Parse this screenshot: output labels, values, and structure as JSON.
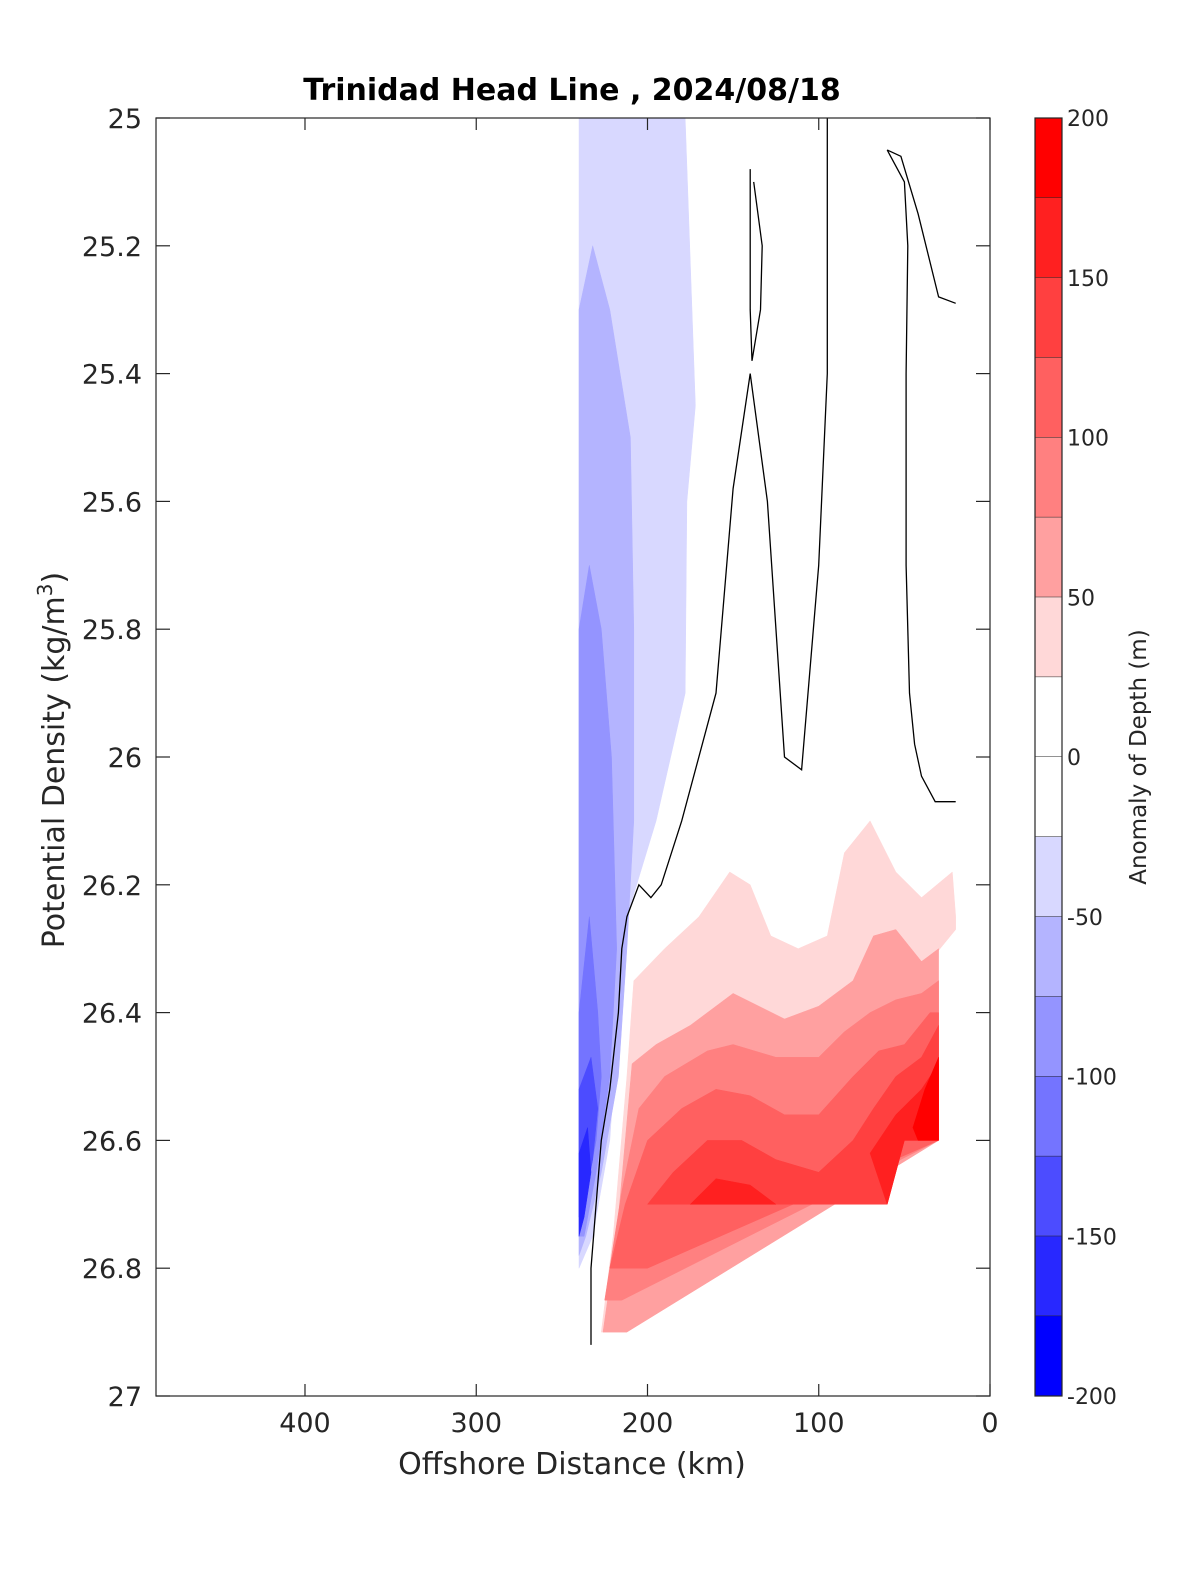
{
  "chart_data": {
    "type": "heatmap",
    "title": "Trinidad Head Line , 2024/08/18",
    "xlabel": "Offshore Distance (km)",
    "ylabel_main": "Potential Density (kg/m",
    "ylabel_sup": "3",
    "ylabel_close": ")",
    "colorbar_label": "Anomaly of Depth (m)",
    "xlim": [
      487,
      0
    ],
    "x_reversed": true,
    "ylim": [
      25,
      27
    ],
    "y_reversed": true,
    "x_ticks": [
      400,
      300,
      200,
      100,
      0
    ],
    "x_tick_labels": [
      "400",
      "300",
      "200",
      "100",
      "0"
    ],
    "y_ticks": [
      25,
      25.2,
      25.4,
      25.6,
      25.8,
      26,
      26.2,
      26.4,
      26.6,
      26.8,
      27
    ],
    "y_tick_labels": [
      "25",
      "25.2",
      "25.4",
      "25.6",
      "25.8",
      "26",
      "26.2",
      "26.4",
      "26.6",
      "26.8",
      "27"
    ],
    "colorbar": {
      "range": [
        -200,
        200
      ],
      "ticks": [
        200,
        150,
        100,
        50,
        0,
        -50,
        -100,
        -150,
        -200
      ],
      "tick_labels": [
        "200",
        "150",
        "100",
        "50",
        "0",
        "-50",
        "-100",
        "-150",
        "-200"
      ],
      "levels": [
        {
          "from": 175,
          "to": 200,
          "color": "#ff0000"
        },
        {
          "from": 150,
          "to": 175,
          "color": "#ff2020"
        },
        {
          "from": 125,
          "to": 150,
          "color": "#ff4040"
        },
        {
          "from": 100,
          "to": 125,
          "color": "#ff6060"
        },
        {
          "from": 75,
          "to": 100,
          "color": "#ff8080"
        },
        {
          "from": 50,
          "to": 75,
          "color": "#ffa0a0"
        },
        {
          "from": 25,
          "to": 50,
          "color": "#ffd8d8"
        },
        {
          "from": 0,
          "to": 25,
          "color": "#ffffff"
        },
        {
          "from": -25,
          "to": 0,
          "color": "#ffffff"
        },
        {
          "from": -50,
          "to": -25,
          "color": "#d8d8ff"
        },
        {
          "from": -75,
          "to": -50,
          "color": "#b4b4ff"
        },
        {
          "from": -100,
          "to": -75,
          "color": "#9494ff"
        },
        {
          "from": -125,
          "to": -100,
          "color": "#7474ff"
        },
        {
          "from": -150,
          "to": -125,
          "color": "#4c4cff"
        },
        {
          "from": -175,
          "to": -150,
          "color": "#2828ff"
        },
        {
          "from": -200,
          "to": -175,
          "color": "#0000ff"
        }
      ]
    },
    "filled_regions": [
      {
        "level": -37,
        "color": "#d8d8ff",
        "points": [
          [
            240,
            25
          ],
          [
            178,
            25
          ],
          [
            172,
            25.45
          ],
          [
            177,
            25.6
          ],
          [
            178,
            25.9
          ],
          [
            195,
            26.1
          ],
          [
            212,
            26.25
          ],
          [
            217,
            26.4
          ],
          [
            222,
            26.6
          ],
          [
            232,
            26.75
          ],
          [
            240,
            26.8
          ]
        ]
      },
      {
        "level": -62,
        "color": "#b4b4ff",
        "points": [
          [
            240,
            25.3
          ],
          [
            232,
            25.2
          ],
          [
            222,
            25.3
          ],
          [
            210,
            25.5
          ],
          [
            208,
            25.8
          ],
          [
            208,
            26.1
          ],
          [
            212,
            26.3
          ],
          [
            217,
            26.5
          ],
          [
            227,
            26.65
          ],
          [
            236,
            26.75
          ],
          [
            240,
            26.78
          ]
        ]
      },
      {
        "level": -87,
        "color": "#9494ff",
        "points": [
          [
            240,
            25.8
          ],
          [
            234,
            25.7
          ],
          [
            227,
            25.8
          ],
          [
            221,
            26
          ],
          [
            218,
            26.3
          ],
          [
            222,
            26.5
          ],
          [
            230,
            26.65
          ],
          [
            237,
            26.75
          ],
          [
            240,
            26.75
          ]
        ]
      },
      {
        "level": -112,
        "color": "#7474ff",
        "points": [
          [
            240,
            26.4
          ],
          [
            234,
            26.25
          ],
          [
            229,
            26.4
          ],
          [
            227,
            26.5
          ],
          [
            230,
            26.6
          ],
          [
            237,
            26.7
          ],
          [
            240,
            26.72
          ]
        ]
      },
      {
        "level": -137,
        "color": "#4c4cff",
        "points": [
          [
            240,
            26.52
          ],
          [
            233,
            26.47
          ],
          [
            229,
            26.55
          ],
          [
            232,
            26.63
          ],
          [
            237,
            26.7
          ],
          [
            240,
            26.72
          ]
        ]
      },
      {
        "level": -162,
        "color": "#2828ff",
        "points": [
          [
            240,
            26.62
          ],
          [
            235,
            26.58
          ],
          [
            233,
            26.65
          ],
          [
            237,
            26.72
          ],
          [
            240,
            26.75
          ]
        ]
      },
      {
        "level": 37,
        "color": "#ffd8d8",
        "points": [
          [
            227,
            26.9
          ],
          [
            220,
            26.75
          ],
          [
            212,
            26.5
          ],
          [
            208,
            26.35
          ],
          [
            190,
            26.3
          ],
          [
            170,
            26.25
          ],
          [
            152,
            26.18
          ],
          [
            140,
            26.2
          ],
          [
            128,
            26.28
          ],
          [
            112,
            26.3
          ],
          [
            95,
            26.28
          ],
          [
            85,
            26.15
          ],
          [
            70,
            26.1
          ],
          [
            55,
            26.18
          ],
          [
            40,
            26.22
          ],
          [
            22,
            26.18
          ],
          [
            20,
            26.25
          ],
          [
            20,
            26.27
          ],
          [
            212,
            26.9
          ]
        ]
      },
      {
        "level": 62,
        "color": "#ffa0a0",
        "points": [
          [
            226,
            26.9
          ],
          [
            218,
            26.75
          ],
          [
            209,
            26.48
          ],
          [
            195,
            26.45
          ],
          [
            175,
            26.42
          ],
          [
            150,
            26.37
          ],
          [
            120,
            26.41
          ],
          [
            100,
            26.39
          ],
          [
            80,
            26.35
          ],
          [
            68,
            26.28
          ],
          [
            55,
            26.27
          ],
          [
            40,
            26.32
          ],
          [
            30,
            26.3
          ],
          [
            30,
            26.6
          ],
          [
            212,
            26.9
          ]
        ]
      },
      {
        "level": 87,
        "color": "#ff8080",
        "points": [
          [
            225,
            26.85
          ],
          [
            215,
            26.68
          ],
          [
            205,
            26.55
          ],
          [
            190,
            26.5
          ],
          [
            165,
            26.46
          ],
          [
            150,
            26.45
          ],
          [
            125,
            26.47
          ],
          [
            100,
            26.47
          ],
          [
            85,
            26.43
          ],
          [
            70,
            26.4
          ],
          [
            55,
            26.38
          ],
          [
            40,
            26.37
          ],
          [
            30,
            26.35
          ],
          [
            30,
            26.6
          ],
          [
            215,
            26.85
          ]
        ]
      },
      {
        "level": 112,
        "color": "#ff6060",
        "points": [
          [
            222,
            26.8
          ],
          [
            213,
            26.7
          ],
          [
            200,
            26.6
          ],
          [
            180,
            26.55
          ],
          [
            160,
            26.52
          ],
          [
            140,
            26.53
          ],
          [
            120,
            26.56
          ],
          [
            100,
            26.56
          ],
          [
            80,
            26.5
          ],
          [
            65,
            26.46
          ],
          [
            50,
            26.45
          ],
          [
            35,
            26.4
          ],
          [
            30,
            26.4
          ],
          [
            30,
            26.6
          ],
          [
            200,
            26.8
          ]
        ]
      },
      {
        "level": 137,
        "color": "#ff4040",
        "points": [
          [
            200,
            26.7
          ],
          [
            185,
            26.65
          ],
          [
            165,
            26.6
          ],
          [
            145,
            26.6
          ],
          [
            125,
            26.63
          ],
          [
            100,
            26.65
          ],
          [
            80,
            26.6
          ],
          [
            68,
            26.55
          ],
          [
            55,
            26.5
          ],
          [
            40,
            26.47
          ],
          [
            30,
            26.42
          ],
          [
            30,
            26.6
          ],
          [
            50,
            26.6
          ],
          [
            60,
            26.7
          ],
          [
            190,
            26.7
          ]
        ]
      },
      {
        "level": 162,
        "color": "#ff2020",
        "points": [
          [
            175,
            26.7
          ],
          [
            160,
            26.66
          ],
          [
            140,
            26.67
          ],
          [
            125,
            26.7
          ],
          [
            160,
            26.7
          ]
        ]
      },
      {
        "level": 162,
        "color": "#ff2020",
        "points": [
          [
            60,
            26.7
          ],
          [
            70,
            26.62
          ],
          [
            55,
            26.56
          ],
          [
            40,
            26.52
          ],
          [
            30,
            26.48
          ],
          [
            30,
            26.6
          ],
          [
            50,
            26.6
          ]
        ]
      },
      {
        "level": 187,
        "color": "#ff0000",
        "points": [
          [
            45,
            26.58
          ],
          [
            38,
            26.52
          ],
          [
            30,
            26.47
          ],
          [
            30,
            26.6
          ],
          [
            42,
            26.6
          ]
        ]
      }
    ],
    "zero_contours": [
      {
        "points": [
          [
            233,
            26.92
          ],
          [
            233,
            26.8
          ],
          [
            230,
            26.7
          ],
          [
            227,
            26.6
          ],
          [
            222,
            26.52
          ],
          [
            217,
            26.4
          ],
          [
            215,
            26.3
          ],
          [
            212,
            26.25
          ],
          [
            205,
            26.2
          ],
          [
            198,
            26.22
          ],
          [
            192,
            26.2
          ],
          [
            180,
            26.1
          ],
          [
            160,
            25.9
          ],
          [
            150,
            25.58
          ],
          [
            140,
            25.4
          ],
          [
            130,
            25.6
          ],
          [
            120,
            26
          ],
          [
            110,
            26.02
          ],
          [
            100,
            25.7
          ],
          [
            95,
            25.4
          ],
          [
            95,
            25.0
          ]
        ]
      },
      {
        "points": [
          [
            140,
            25.08
          ],
          [
            140,
            25.2
          ],
          [
            140,
            25.3
          ],
          [
            139,
            25.38
          ],
          [
            134,
            25.3
          ],
          [
            133,
            25.2
          ],
          [
            138,
            25.1
          ]
        ]
      },
      {
        "points": [
          [
            60,
            25.05
          ],
          [
            50,
            25.1
          ],
          [
            48,
            25.2
          ],
          [
            49,
            25.4
          ],
          [
            49,
            25.7
          ],
          [
            47,
            25.9
          ],
          [
            44,
            25.98
          ],
          [
            40,
            26.03
          ],
          [
            32,
            26.07
          ],
          [
            20,
            26.07
          ]
        ]
      },
      {
        "points": [
          [
            60,
            25.05
          ],
          [
            52,
            25.06
          ],
          [
            42,
            25.15
          ],
          [
            30,
            25.28
          ],
          [
            20,
            25.29
          ]
        ]
      }
    ]
  }
}
